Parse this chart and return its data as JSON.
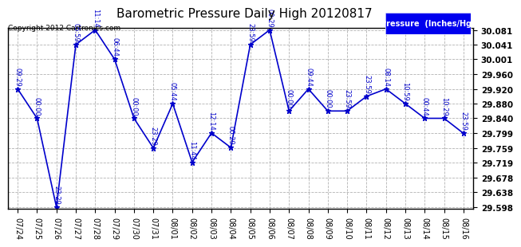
{
  "title": "Barometric Pressure Daily High 20120817",
  "copyright_text": "Copyright 2012 Cartronics.com",
  "legend_label": "Pressure  (Inches/Hg)",
  "x_labels": [
    "07/24",
    "07/25",
    "07/26",
    "07/27",
    "07/28",
    "07/29",
    "07/30",
    "07/31",
    "08/01",
    "08/02",
    "08/03",
    "08/04",
    "08/05",
    "08/06",
    "08/07",
    "08/08",
    "08/09",
    "08/10",
    "08/11",
    "08/12",
    "08/13",
    "08/14",
    "08/15",
    "08/16"
  ],
  "x_values": [
    0,
    1,
    2,
    3,
    4,
    5,
    6,
    7,
    8,
    9,
    10,
    11,
    12,
    13,
    14,
    15,
    16,
    17,
    18,
    19,
    20,
    21,
    22,
    23
  ],
  "y_values": [
    29.92,
    29.84,
    29.598,
    30.041,
    30.081,
    30.001,
    29.84,
    29.759,
    29.88,
    29.72,
    29.8,
    29.76,
    30.041,
    30.081,
    29.86,
    29.92,
    29.86,
    29.86,
    29.9,
    29.92,
    29.88,
    29.84,
    29.84,
    29.799
  ],
  "point_labels": [
    "09:29",
    "00:00",
    "23:29",
    "05:59",
    "11:14",
    "06:44",
    "00:00",
    "23:29",
    "05:44",
    "11:44",
    "12:14",
    "00:29",
    "23:59",
    "00:29",
    "00:00",
    "09:44",
    "00:00",
    "23:59",
    "23:59",
    "08:14",
    "10:59",
    "00:44",
    "10:29",
    "23:59"
  ],
  "ylim_min": 29.593,
  "ylim_max": 30.086,
  "y_ticks": [
    29.598,
    29.638,
    29.678,
    29.719,
    29.759,
    29.799,
    29.84,
    29.88,
    29.92,
    29.96,
    30.001,
    30.041,
    30.081
  ],
  "line_color": "#0000cc",
  "marker_color": "#0000cc",
  "bg_color": "#ffffff",
  "plot_bg_color": "#ffffff",
  "grid_color": "#aaaaaa",
  "title_color": "#000000",
  "legend_bg": "#0000ee",
  "legend_text_color": "#ffffff"
}
